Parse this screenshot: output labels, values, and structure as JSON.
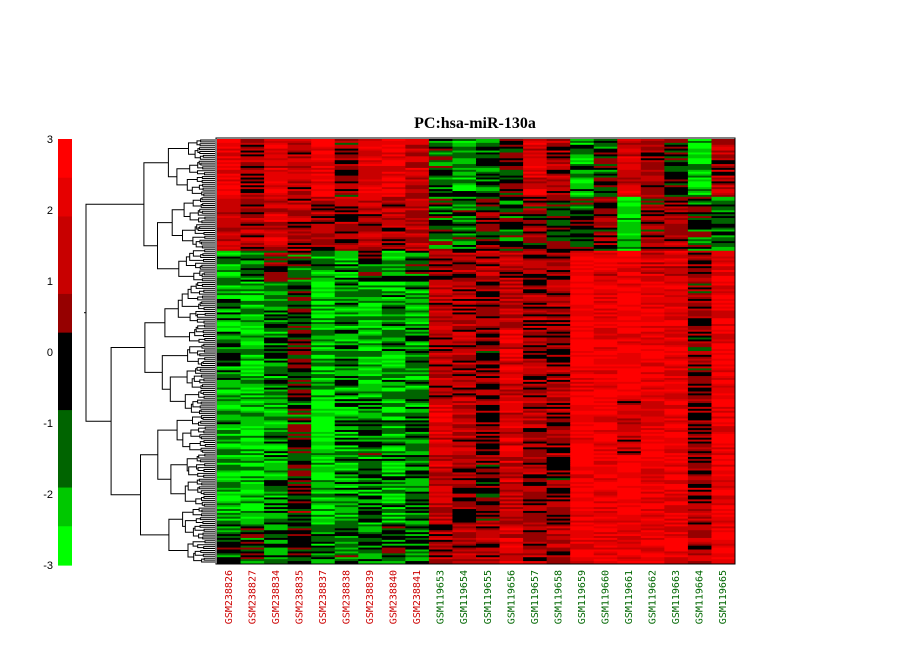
{
  "chart_data": {
    "type": "heatmap",
    "title": "PC:hsa-miR-130a",
    "colorbar": {
      "min": -3,
      "max": 3,
      "ticks": [
        3,
        2,
        1,
        0,
        -1,
        -2,
        -3
      ],
      "colors": [
        "#ff0000",
        "#e60000",
        "#c80000",
        "#960000",
        "#000000",
        "#006400",
        "#00c800",
        "#00ff00"
      ]
    },
    "columns": [
      {
        "name": "GSM238826",
        "group": "A"
      },
      {
        "name": "GSM238827",
        "group": "A"
      },
      {
        "name": "GSM238834",
        "group": "A"
      },
      {
        "name": "GSM238835",
        "group": "A"
      },
      {
        "name": "GSM238837",
        "group": "A"
      },
      {
        "name": "GSM238838",
        "group": "A"
      },
      {
        "name": "GSM238839",
        "group": "A"
      },
      {
        "name": "GSM238840",
        "group": "A"
      },
      {
        "name": "GSM238841",
        "group": "A"
      },
      {
        "name": "GSM119653",
        "group": "B"
      },
      {
        "name": "GSM119654",
        "group": "B"
      },
      {
        "name": "GSM119655",
        "group": "B"
      },
      {
        "name": "GSM119656",
        "group": "B"
      },
      {
        "name": "GSM119657",
        "group": "B"
      },
      {
        "name": "GSM119658",
        "group": "B"
      },
      {
        "name": "GSM119659",
        "group": "B"
      },
      {
        "name": "GSM119660",
        "group": "B"
      },
      {
        "name": "GSM119661",
        "group": "B"
      },
      {
        "name": "GSM119662",
        "group": "B"
      },
      {
        "name": "GSM119663",
        "group": "B"
      },
      {
        "name": "GSM119664",
        "group": "B"
      },
      {
        "name": "GSM119665",
        "group": "B"
      }
    ],
    "group_colors": {
      "A": "#cc0000",
      "B": "#006600"
    },
    "row_blocks": [
      {
        "rows": 30,
        "values": [
          2.4,
          0.6,
          1.8,
          1.2,
          2.6,
          0.2,
          2.0,
          2.2,
          1.4,
          -1.0,
          -1.8,
          -1.4,
          -0.4,
          2.0,
          0.6,
          -1.6,
          -0.8,
          1.6,
          0.4,
          -0.4,
          -2.2,
          0.8
        ]
      },
      {
        "rows": 28,
        "values": [
          1.2,
          0.8,
          1.6,
          1.0,
          0.6,
          0.8,
          1.2,
          1.0,
          1.4,
          -0.8,
          -1.2,
          -0.2,
          -0.8,
          0.2,
          -0.4,
          -0.6,
          0.4,
          -2.4,
          0.2,
          0.6,
          -0.8,
          -1.2
        ]
      },
      {
        "rows": 16,
        "values": [
          -2.0,
          -1.0,
          -0.2,
          -0.8,
          -1.6,
          -1.4,
          -1.0,
          -1.8,
          -1.2,
          0.4,
          0.6,
          1.0,
          0.8,
          0.6,
          0.4,
          2.4,
          2.0,
          2.2,
          1.8,
          2.0,
          0.4,
          2.2
        ]
      },
      {
        "rows": 60,
        "values": [
          -1.6,
          -2.4,
          -1.4,
          -0.4,
          -2.4,
          -1.6,
          -2.2,
          -2.0,
          -1.6,
          0.8,
          0.8,
          0.4,
          1.6,
          0.6,
          0.6,
          2.6,
          2.2,
          2.8,
          2.4,
          2.2,
          0.2,
          2.4
        ]
      },
      {
        "rows": 30,
        "values": [
          -1.8,
          -2.2,
          -1.6,
          -0.8,
          -2.6,
          -1.8,
          -1.2,
          -1.8,
          -1.4,
          2.0,
          1.2,
          0.4,
          1.8,
          0.8,
          0.6,
          2.6,
          2.4,
          1.0,
          2.2,
          2.2,
          0.4,
          2.2
        ]
      },
      {
        "rows": 36,
        "values": [
          -2.2,
          -2.6,
          -1.6,
          -0.4,
          -2.6,
          -1.6,
          -1.4,
          -1.8,
          -1.2,
          1.4,
          0.6,
          0.2,
          1.4,
          0.6,
          0.4,
          2.6,
          2.4,
          2.8,
          2.2,
          2.2,
          0.6,
          2.4
        ]
      },
      {
        "rows": 20,
        "values": [
          -1.2,
          -0.8,
          -1.2,
          -0.6,
          -1.4,
          -1.0,
          -1.2,
          -1.0,
          -1.2,
          0.6,
          1.2,
          1.0,
          1.8,
          0.8,
          0.8,
          2.2,
          2.4,
          2.2,
          2.4,
          2.2,
          1.0,
          2.6
        ]
      }
    ]
  }
}
